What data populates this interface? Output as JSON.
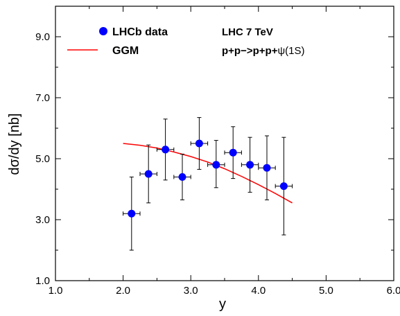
{
  "chart_data": {
    "type": "scatter",
    "xlabel": "y",
    "ylabel": "dσ/dy [nb]",
    "xlim": [
      1.0,
      6.0
    ],
    "ylim": [
      1.0,
      10.0
    ],
    "x_ticks": [
      "1.0",
      "2.0",
      "3.0",
      "4.0",
      "5.0",
      "6.0"
    ],
    "y_ticks": [
      "1.0",
      "3.0",
      "5.0",
      "7.0",
      "9.0"
    ],
    "grid": false,
    "legend_position": "top-left",
    "annotations": {
      "line1": "LHC 7 TeV",
      "line2_prefix": "p+p−>p+p+",
      "line2_psi": "ψ",
      "line2_suffix": "(1S)"
    },
    "series": [
      {
        "name": "LHCb data",
        "kind": "points",
        "color": "#0000ff",
        "x": [
          2.125,
          2.375,
          2.625,
          2.875,
          3.125,
          3.375,
          3.625,
          3.875,
          4.125,
          4.375
        ],
        "x_err": [
          0.125,
          0.125,
          0.125,
          0.125,
          0.125,
          0.125,
          0.125,
          0.125,
          0.125,
          0.125
        ],
        "y": [
          3.2,
          4.5,
          5.3,
          4.4,
          5.5,
          4.8,
          5.2,
          4.8,
          4.7,
          4.1
        ],
        "y_err_low": [
          1.2,
          0.95,
          1.0,
          0.75,
          0.85,
          0.75,
          0.85,
          0.9,
          1.05,
          1.6
        ],
        "y_err_high": [
          1.2,
          0.95,
          1.0,
          0.75,
          0.85,
          0.8,
          0.85,
          0.9,
          1.05,
          1.6
        ]
      },
      {
        "name": "GGM",
        "kind": "line",
        "color": "#ff0000",
        "x": [
          2.0,
          2.25,
          2.5,
          2.75,
          3.0,
          3.25,
          3.5,
          3.75,
          4.0,
          4.25,
          4.5
        ],
        "y": [
          5.5,
          5.44,
          5.35,
          5.22,
          5.07,
          4.89,
          4.67,
          4.42,
          4.15,
          3.86,
          3.55
        ]
      }
    ]
  }
}
